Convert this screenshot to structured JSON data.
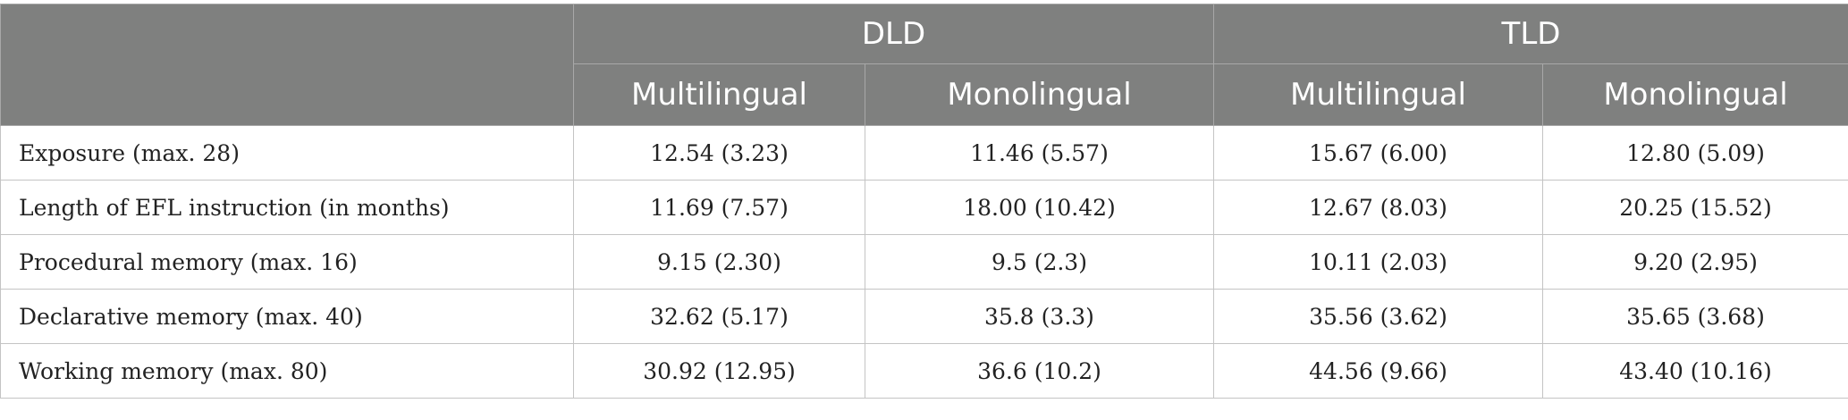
{
  "header": {
    "groups": [
      "DLD",
      "TLD"
    ],
    "subgroups": [
      "Multilingual",
      "Monolingual",
      "Multilingual",
      "Monolingual"
    ]
  },
  "rows": [
    {
      "label": "Exposure (max. 28)",
      "values": [
        "12.54 (3.23)",
        "11.46 (5.57)",
        "15.67 (6.00)",
        "12.80 (5.09)"
      ]
    },
    {
      "label": "Length of EFL instruction (in months)",
      "values": [
        "11.69 (7.57)",
        "18.00 (10.42)",
        "12.67 (8.03)",
        "20.25 (15.52)"
      ]
    },
    {
      "label": "Procedural memory (max. 16)",
      "values": [
        "9.15 (2.30)",
        "9.5 (2.3)",
        "10.11 (2.03)",
        "9.20 (2.95)"
      ]
    },
    {
      "label": "Declarative memory (max. 40)",
      "values": [
        "32.62 (5.17)",
        "35.8 (3.3)",
        "35.56 (3.62)",
        "35.65 (3.68)"
      ]
    },
    {
      "label": "Working memory (max. 80)",
      "values": [
        "30.92 (12.95)",
        "36.6 (10.2)",
        "44.56 (9.66)",
        "43.40 (10.16)"
      ]
    }
  ],
  "colors": {
    "header_bg": "#7f807f",
    "header_text": "#ffffff",
    "grid": "#c4c4c4"
  }
}
